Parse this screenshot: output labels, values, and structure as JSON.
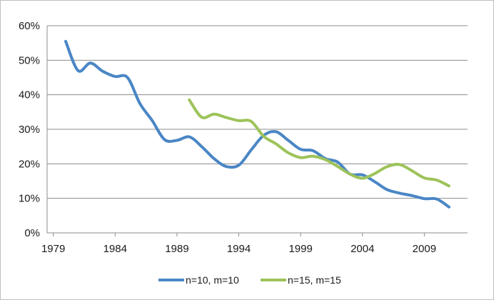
{
  "chart_data": {
    "type": "line",
    "title": "",
    "xlabel": "",
    "ylabel": "",
    "xlim": [
      1978.5,
      2012.5
    ],
    "ylim": [
      0,
      60
    ],
    "x_ticks": [
      1979,
      1984,
      1989,
      1994,
      1999,
      2004,
      2009
    ],
    "y_ticks": [
      0,
      10,
      20,
      30,
      40,
      50,
      60
    ],
    "y_tick_labels": [
      "0%",
      "10%",
      "20%",
      "30%",
      "40%",
      "50%",
      "60%"
    ],
    "grid": "horizontal",
    "legend_position": "bottom",
    "series": [
      {
        "name": "n=10, m=10",
        "color": "#4a86c5",
        "x": [
          1980,
          1981,
          1982,
          1983,
          1984,
          1985,
          1986,
          1987,
          1988,
          1989,
          1990,
          1991,
          1992,
          1993,
          1994,
          1995,
          1996,
          1997,
          1998,
          1999,
          2000,
          2001,
          2002,
          2003,
          2004,
          2005,
          2006,
          2007,
          2008,
          2009,
          2010,
          2011
        ],
        "values": [
          55.5,
          47,
          49.2,
          46.8,
          45.3,
          45,
          37.5,
          32.5,
          27,
          26.8,
          27.8,
          25,
          21.5,
          19.2,
          19.6,
          24,
          28.2,
          29.3,
          26.8,
          24.2,
          23.8,
          21.5,
          20.5,
          17,
          16.8,
          14.8,
          12.5,
          11.5,
          10.8,
          9.9,
          9.8,
          7.5
        ]
      },
      {
        "name": "n=15, m=15",
        "color": "#9dc35a",
        "x": [
          1990,
          1991,
          1992,
          1993,
          1994,
          1995,
          1996,
          1997,
          1998,
          1999,
          2000,
          2001,
          2002,
          2003,
          2004,
          2005,
          2006,
          2007,
          2008,
          2009,
          2010,
          2011
        ],
        "values": [
          38.5,
          33.5,
          34.4,
          33.4,
          32.5,
          32.3,
          28,
          25.8,
          23.2,
          21.8,
          22.2,
          21.2,
          19.2,
          17,
          15.8,
          17.2,
          19.2,
          19.8,
          18,
          15.9,
          15.3,
          13.6
        ]
      }
    ]
  }
}
